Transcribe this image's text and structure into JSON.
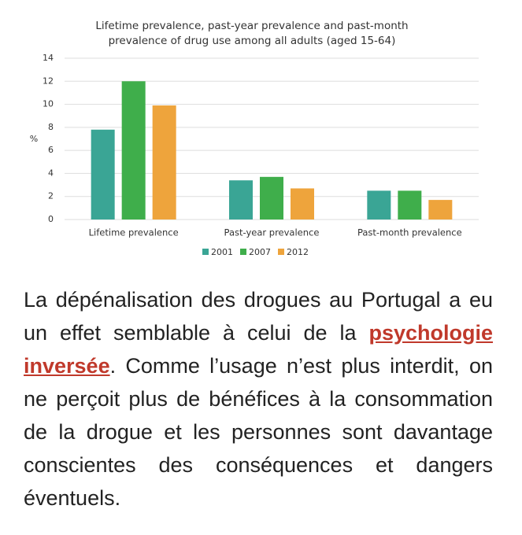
{
  "chart_data": {
    "type": "bar",
    "title": [
      "Lifetime prevalence, past-year prevalence and past-month",
      "prevalence of drug use among all adults (aged 15-64)"
    ],
    "ylabel": "%",
    "categories": [
      "Lifetime prevalence",
      "Past-year prevalence",
      "Past-month prevalence"
    ],
    "series": [
      {
        "name": "2001",
        "color": "#3aa595",
        "values": [
          7.8,
          3.4,
          2.5
        ]
      },
      {
        "name": "2007",
        "color": "#3fae4b",
        "values": [
          12,
          3.7,
          2.5
        ]
      },
      {
        "name": "2012",
        "color": "#eea43c",
        "values": [
          9.9,
          2.7,
          1.7
        ]
      }
    ],
    "ylim": [
      0,
      14
    ],
    "yticks": [
      0,
      2,
      4,
      6,
      8,
      10,
      12,
      14
    ],
    "grid": true,
    "legend": "bottom"
  },
  "article": {
    "before": "La dépénalisation des drogues au Portugal a eu un effet semblable à celui de la ",
    "link": "psychologie inversée",
    "after": ". Comme l’usage n’est plus interdit, on ne perçoit plus de bénéfices à la consommation de la drogue et les personnes sont davantage conscientes des conséquences et dangers éventuels."
  }
}
